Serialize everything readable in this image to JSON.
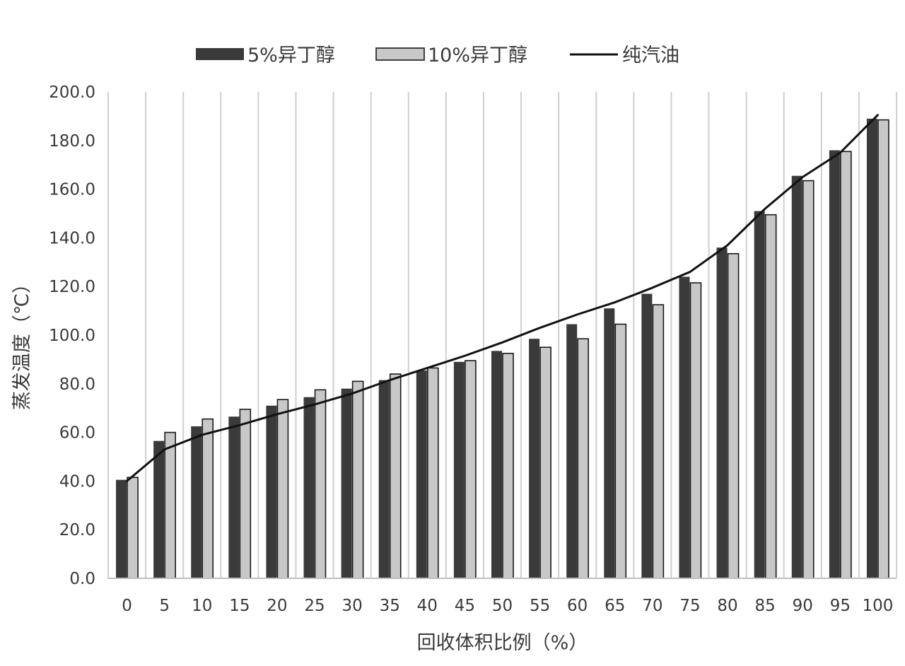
{
  "chart_data": {
    "type": "bar",
    "title": "",
    "xlabel": "回收体积比例（%）",
    "ylabel": "蒸发温度（℃）",
    "ylim": [
      0,
      200
    ],
    "y_ticks": [
      "0.0",
      "20.0",
      "40.0",
      "60.0",
      "80.0",
      "100.0",
      "120.0",
      "140.0",
      "160.0",
      "180.0",
      "200.0"
    ],
    "categories": [
      "0",
      "5",
      "10",
      "15",
      "20",
      "25",
      "30",
      "35",
      "40",
      "45",
      "50",
      "55",
      "60",
      "65",
      "70",
      "75",
      "80",
      "85",
      "90",
      "95",
      "100"
    ],
    "grid": "vertical",
    "legend_position": "top",
    "series": [
      {
        "name": "5%异丁醇",
        "kind": "bar",
        "color": "#3a3a3a",
        "values": [
          40.5,
          56.5,
          62.5,
          66.5,
          71.0,
          74.5,
          78.0,
          81.5,
          85.5,
          89.0,
          93.5,
          98.5,
          104.5,
          111.0,
          117.0,
          124.0,
          136.0,
          151.0,
          165.5,
          176.0,
          189.0
        ]
      },
      {
        "name": "10%异丁醇",
        "kind": "bar",
        "color": "#c8c8c8",
        "values": [
          41.5,
          60.0,
          65.5,
          69.5,
          73.5,
          77.5,
          81.0,
          84.0,
          86.5,
          89.5,
          92.5,
          95.0,
          98.5,
          104.5,
          112.5,
          121.5,
          133.5,
          149.5,
          163.5,
          175.5,
          188.5
        ]
      },
      {
        "name": "纯汽油",
        "kind": "line",
        "color": "#111111",
        "values": [
          40.0,
          53.0,
          59.0,
          63.0,
          67.5,
          71.5,
          76.0,
          81.5,
          86.5,
          91.5,
          97.0,
          103.0,
          108.5,
          113.5,
          119.5,
          126.0,
          137.0,
          152.0,
          165.0,
          175.0,
          190.5
        ]
      }
    ]
  }
}
